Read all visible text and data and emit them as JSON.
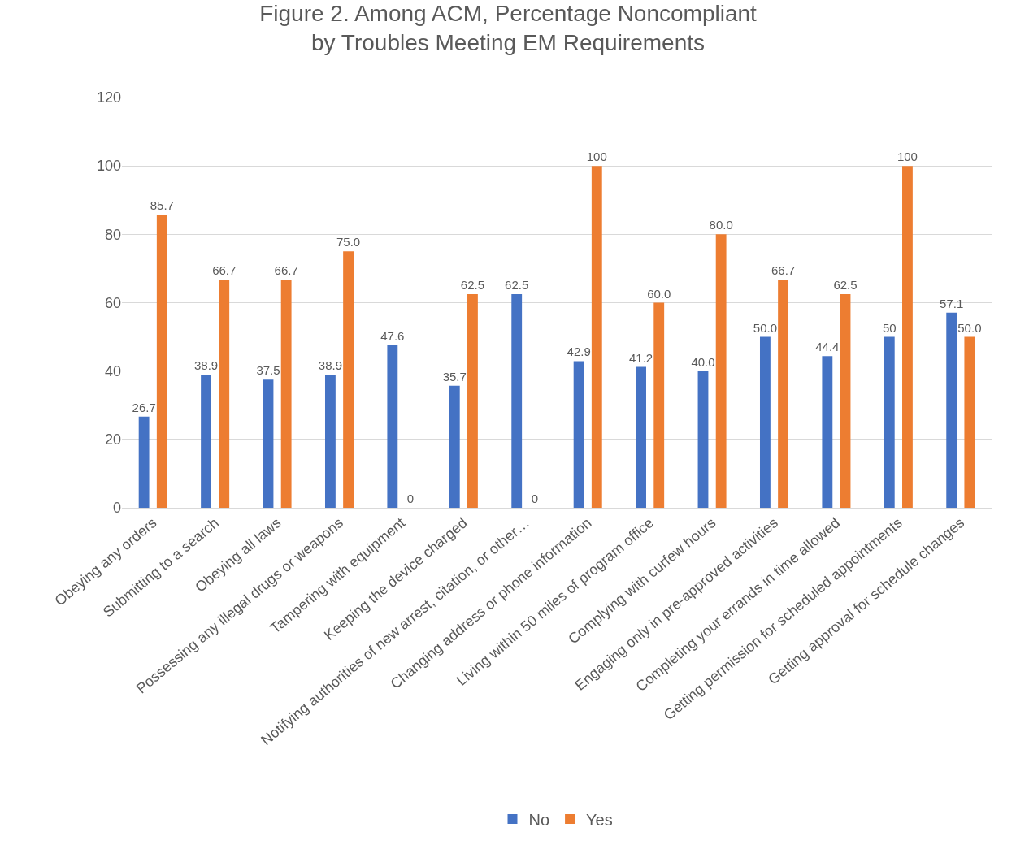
{
  "chart_data": {
    "type": "bar",
    "title": "Figure 2. Among ACM, Percentage Noncompliant\nby Troubles Meeting EM Requirements",
    "categories": [
      "Obeying any orders",
      "Submitting to a search",
      "Obeying all laws",
      "Possessing any illegal drugs or weapons",
      "Tampering with equipment",
      "Keeping the device charged",
      "Notifying authorities of new arrest, citation, or other…",
      "Changing address or phone information",
      "Living within 50 miles of program office",
      "Complying with curfew hours",
      "Engaging only in pre-approved activities",
      "Completing your errands in time allowed",
      "Getting permission for scheduled appointments",
      "Getting approval for schedule changes"
    ],
    "series": [
      {
        "name": "No",
        "color": "#4472c4",
        "values": [
          26.7,
          38.9,
          37.5,
          38.9,
          47.6,
          35.7,
          62.5,
          42.9,
          41.2,
          40.0,
          50.0,
          44.4,
          50,
          57.1
        ],
        "value_labels": [
          "26.7",
          "38.9",
          "37.5",
          "38.9",
          "47.6",
          "35.7",
          "62.5",
          "42.9",
          "41.2",
          "40.0",
          "50.0",
          "44.4",
          "50",
          "57.1"
        ]
      },
      {
        "name": "Yes",
        "color": "#ed7d31",
        "values": [
          85.7,
          66.7,
          66.7,
          75.0,
          0,
          62.5,
          0,
          100,
          60.0,
          80.0,
          66.7,
          62.5,
          100,
          50.0
        ],
        "value_labels": [
          "85.7",
          "66.7",
          "66.7",
          "75.0",
          "0",
          "62.5",
          "0",
          "100",
          "60.0",
          "80.0",
          "66.7",
          "62.5",
          "100",
          "50.0"
        ]
      }
    ],
    "ylim": [
      0,
      120
    ],
    "yticks": [
      0,
      20,
      40,
      60,
      80,
      100,
      120
    ],
    "grid": "y",
    "legend": "bottom"
  }
}
